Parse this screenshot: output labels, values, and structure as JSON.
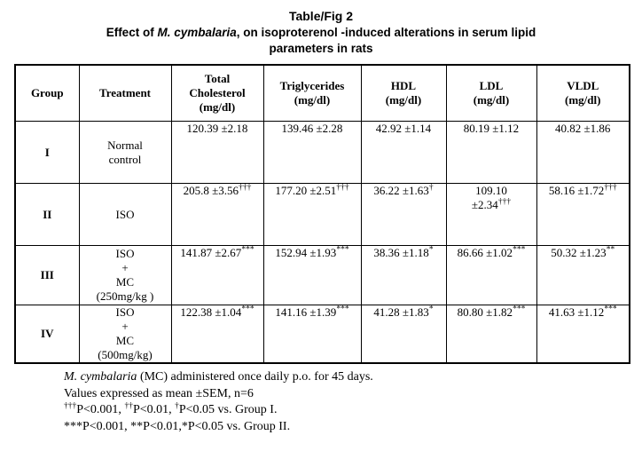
{
  "title": {
    "line1": "Table/Fig 2",
    "line2_segments": [
      {
        "text": "Effect of "
      },
      {
        "text": "M. cymbalaria",
        "italic": true
      },
      {
        "text": ", on isoproterenol -induced alterations in serum lipid"
      }
    ],
    "line3": "parameters in rats"
  },
  "table": {
    "columns": [
      {
        "key": "group",
        "label_lines": [
          "Group"
        ]
      },
      {
        "key": "treatment",
        "label_lines": [
          "Treatment"
        ]
      },
      {
        "key": "total_cholesterol",
        "label_lines": [
          "Total",
          "Cholesterol",
          "(mg/dl)"
        ]
      },
      {
        "key": "triglycerides",
        "label_lines": [
          "Triglycerides",
          "(mg/dl)"
        ]
      },
      {
        "key": "hdl",
        "label_lines": [
          "HDL",
          "(mg/dl)"
        ]
      },
      {
        "key": "ldl",
        "label_lines": [
          "LDL",
          "(mg/dl)"
        ]
      },
      {
        "key": "vldl",
        "label_lines": [
          "VLDL",
          "(mg/dl)"
        ]
      }
    ],
    "rows": [
      {
        "group": "I",
        "treatment_lines": [
          "Normal",
          "control"
        ],
        "values": [
          {
            "lines": [
              "120.39 ±2.18"
            ],
            "sup": ""
          },
          {
            "lines": [
              "139.46 ±2.28"
            ],
            "sup": ""
          },
          {
            "lines": [
              "42.92 ±1.14"
            ],
            "sup": ""
          },
          {
            "lines": [
              "80.19 ±1.12"
            ],
            "sup": ""
          },
          {
            "lines": [
              "40.82 ±1.86"
            ],
            "sup": ""
          }
        ]
      },
      {
        "group": "II",
        "treatment_lines": [
          "ISO"
        ],
        "values": [
          {
            "lines": [
              "205.8 ±3.56"
            ],
            "sup": "†††"
          },
          {
            "lines": [
              "177.20 ±2.51"
            ],
            "sup": "†††"
          },
          {
            "lines": [
              "36.22 ±1.63"
            ],
            "sup": "†"
          },
          {
            "lines": [
              "109.10",
              "±2.34"
            ],
            "sup": "†††"
          },
          {
            "lines": [
              "58.16 ±1.72"
            ],
            "sup": "†††"
          }
        ]
      },
      {
        "group": "III",
        "treatment_lines": [
          "ISO",
          "+",
          "MC",
          "(250mg/kg )"
        ],
        "values": [
          {
            "lines": [
              "141.87 ±2.67"
            ],
            "sup": "***"
          },
          {
            "lines": [
              "152.94 ±1.93"
            ],
            "sup": "***"
          },
          {
            "lines": [
              "38.36 ±1.18"
            ],
            "sup": "*"
          },
          {
            "lines": [
              "86.66 ±1.02"
            ],
            "sup": "***"
          },
          {
            "lines": [
              "50.32 ±1.23"
            ],
            "sup": "**"
          }
        ]
      },
      {
        "group": "IV",
        "treatment_lines": [
          "ISO",
          "+",
          "MC",
          "(500mg/kg)"
        ],
        "values": [
          {
            "lines": [
              "122.38 ±1.04"
            ],
            "sup": "***"
          },
          {
            "lines": [
              "141.16 ±1.39"
            ],
            "sup": "***"
          },
          {
            "lines": [
              "41.28 ±1.83"
            ],
            "sup": "*"
          },
          {
            "lines": [
              "80.80 ±1.82"
            ],
            "sup": "***"
          },
          {
            "lines": [
              "41.63 ±1.12"
            ],
            "sup": "***"
          }
        ]
      }
    ]
  },
  "footnotes": {
    "lines": [
      {
        "segments": [
          {
            "text": "M. cymbalaria",
            "italic": true
          },
          {
            "text": " (MC) administered once daily p.o. for 45 days."
          }
        ]
      },
      {
        "segments": [
          {
            "text": "Values expressed as mean ±SEM, n=6"
          }
        ]
      },
      {
        "segments": [
          {
            "sup": "†††"
          },
          {
            "text": "P<0.001, "
          },
          {
            "sup": "††"
          },
          {
            "text": "P<0.01, "
          },
          {
            "sup": "†"
          },
          {
            "text": "P<0.05 vs. Group I."
          }
        ]
      },
      {
        "segments": [
          {
            "text": "***P<0.001, **P<0.01,*P<0.05 vs.  Group II."
          }
        ]
      }
    ]
  }
}
